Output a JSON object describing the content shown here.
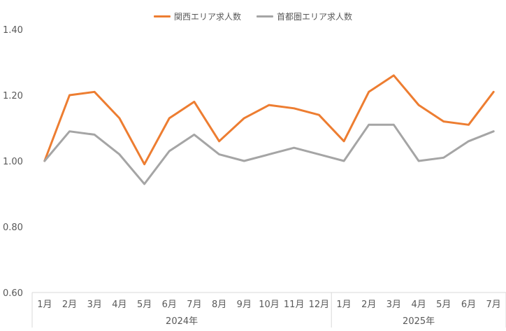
{
  "chart_data": {
    "type": "line",
    "title": "",
    "xlabel": "",
    "ylabel": "",
    "ylim": [
      0.6,
      1.4
    ],
    "yticks": [
      "0.60",
      "0.80",
      "1.00",
      "1.20",
      "1.40"
    ],
    "grid": false,
    "legend_position": "top-center",
    "categories": [
      "1月",
      "2月",
      "3月",
      "4月",
      "5月",
      "6月",
      "7月",
      "8月",
      "9月",
      "10月",
      "11月",
      "12月",
      "1月",
      "2月",
      "3月",
      "4月",
      "5月",
      "6月",
      "7月"
    ],
    "groups": [
      {
        "label": "2024年",
        "count": 12
      },
      {
        "label": "2025年",
        "count": 7
      }
    ],
    "series": [
      {
        "name": "関西エリア求人数",
        "color": "#ED7D31",
        "values": [
          1.0,
          1.2,
          1.21,
          1.13,
          0.99,
          1.13,
          1.18,
          1.06,
          1.13,
          1.17,
          1.16,
          1.14,
          1.06,
          1.21,
          1.26,
          1.17,
          1.12,
          1.11,
          1.21
        ]
      },
      {
        "name": "首都圏エリア求人数",
        "color": "#A5A5A5",
        "values": [
          1.0,
          1.09,
          1.08,
          1.02,
          0.93,
          1.03,
          1.08,
          1.02,
          1.0,
          1.02,
          1.04,
          1.02,
          1.0,
          1.11,
          1.11,
          1.0,
          1.01,
          1.06,
          1.09
        ]
      }
    ]
  }
}
